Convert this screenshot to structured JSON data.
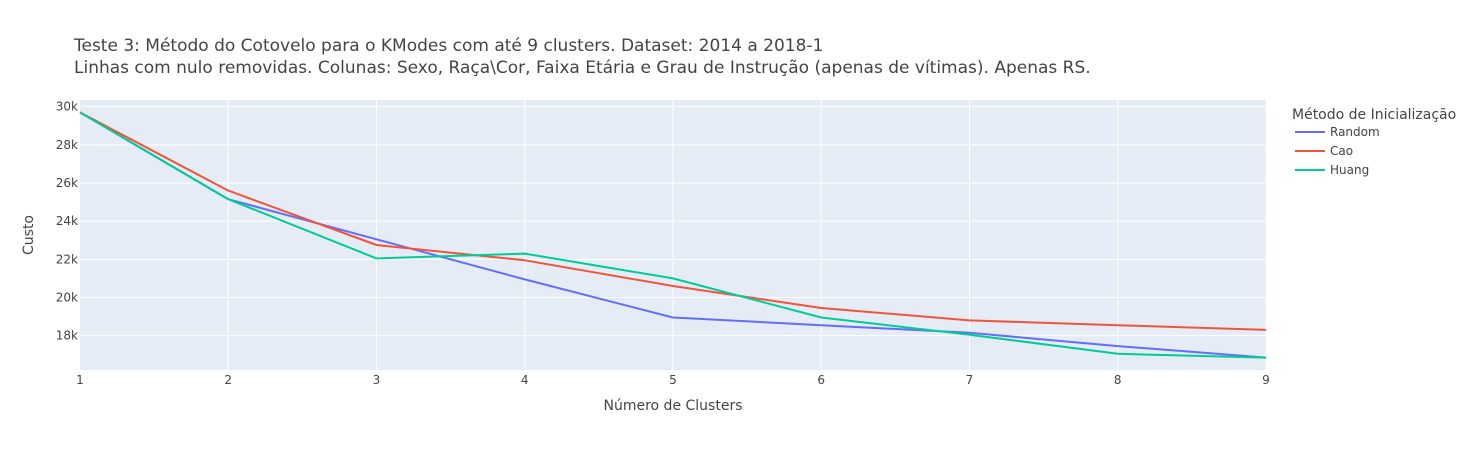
{
  "chart_data": {
    "type": "line",
    "title_lines": [
      "Teste 3: Método do Cotovelo para o KModes com até 9 clusters. Dataset: 2014 a 2018-1",
      "Linhas com nulo removidas. Colunas: Sexo, Raça\\Cor, Faixa Etária e Grau de Instrução (apenas de vítimas). Apenas RS."
    ],
    "xlabel": "Número de Clusters",
    "ylabel": "Custo",
    "x": [
      1,
      2,
      3,
      4,
      5,
      6,
      7,
      8,
      9
    ],
    "xlim": [
      1,
      9
    ],
    "ylim": [
      16200,
      30350
    ],
    "xticks": [
      1,
      2,
      3,
      4,
      5,
      6,
      7,
      8,
      9
    ],
    "xtick_labels": [
      "1",
      "2",
      "3",
      "4",
      "5",
      "6",
      "7",
      "8",
      "9"
    ],
    "yticks": [
      18000,
      20000,
      22000,
      24000,
      26000,
      28000,
      30000
    ],
    "ytick_labels": [
      "18k",
      "20k",
      "22k",
      "24k",
      "26k",
      "28k",
      "30k"
    ],
    "grid": true,
    "legend": {
      "title": "Método de Inicialização",
      "position": "right"
    },
    "series": [
      {
        "name": "Random",
        "color": "#636efa",
        "values": [
          29700,
          25150,
          23050,
          20950,
          18950,
          18550,
          18150,
          17450,
          16850
        ]
      },
      {
        "name": "Cao",
        "color": "#ef553b",
        "values": [
          29700,
          25600,
          22750,
          21950,
          20600,
          19450,
          18800,
          18550,
          18300
        ]
      },
      {
        "name": "Huang",
        "color": "#00cc96",
        "values": [
          29700,
          25150,
          22050,
          22300,
          21000,
          18950,
          18050,
          17050,
          16850
        ]
      }
    ]
  }
}
